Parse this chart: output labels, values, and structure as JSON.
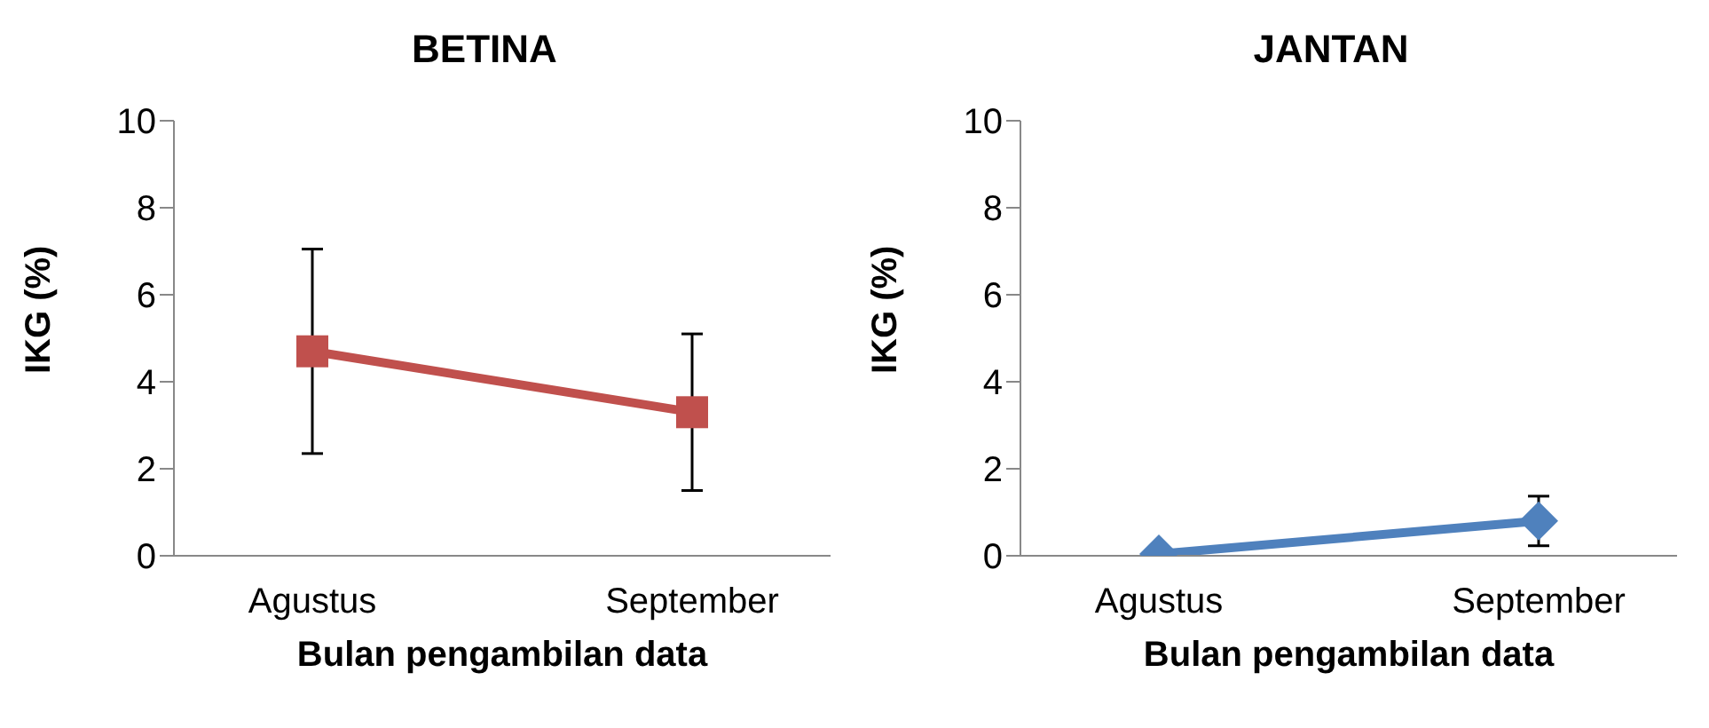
{
  "chart_data": [
    {
      "type": "line",
      "title": "BETINA",
      "xlabel": "Bulan pengambilan data",
      "ylabel": "IKG (%)",
      "categories": [
        "Agustus",
        "September"
      ],
      "ylim": [
        0,
        10
      ],
      "yticks": [
        0,
        2,
        4,
        6,
        8,
        10
      ],
      "grid": false,
      "legend": false,
      "marker": "square",
      "series": [
        {
          "color": "#c0504d",
          "values": [
            4.7,
            3.3
          ],
          "errors": [
            2.35,
            1.8
          ]
        }
      ]
    },
    {
      "type": "line",
      "title": "JANTAN",
      "xlabel": "Bulan pengambilan data",
      "ylabel": "IKG (%)",
      "categories": [
        "Agustus",
        "September"
      ],
      "ylim": [
        0,
        10
      ],
      "yticks": [
        0,
        2,
        4,
        6,
        8,
        10
      ],
      "grid": false,
      "legend": false,
      "marker": "diamond",
      "series": [
        {
          "color": "#4f81bd",
          "values": [
            0.04,
            0.8
          ],
          "errors": [
            null,
            0.57
          ]
        }
      ]
    }
  ]
}
